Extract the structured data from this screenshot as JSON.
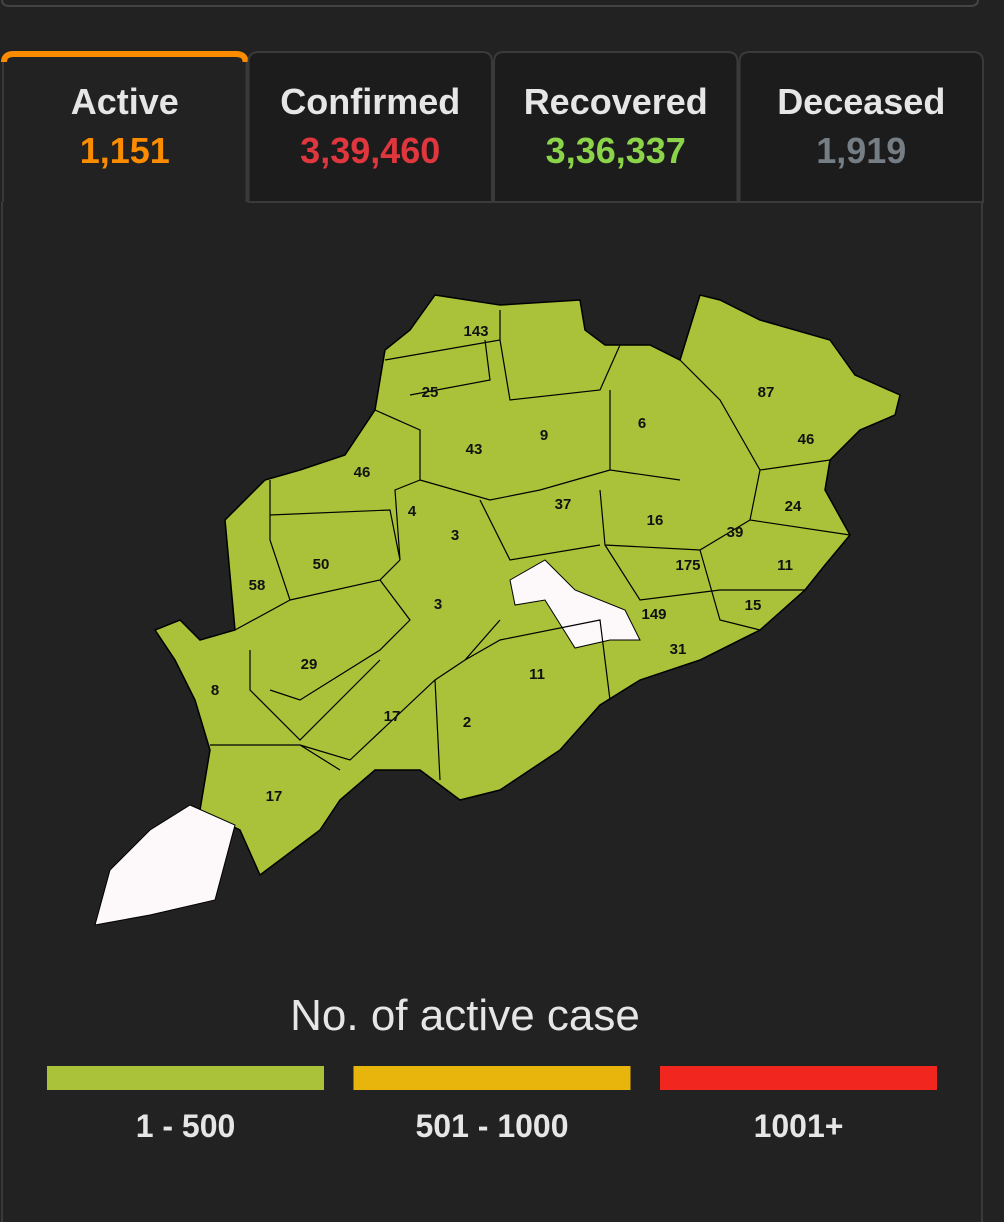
{
  "tabs": [
    {
      "label": "Active",
      "value": "1,151",
      "color": "#fb8c00",
      "active": true
    },
    {
      "label": "Confirmed",
      "value": "3,39,460",
      "color": "#e0373f",
      "active": false
    },
    {
      "label": "Recovered",
      "value": "3,36,337",
      "color": "#8bd44a",
      "active": false
    },
    {
      "label": "Deceased",
      "value": "1,919",
      "color": "#757d85",
      "active": false
    }
  ],
  "map": {
    "fill": "#a9c23a",
    "districts": [
      143,
      25,
      43,
      9,
      6,
      87,
      46,
      46,
      4,
      37,
      24,
      16,
      3,
      39,
      50,
      175,
      11,
      58,
      3,
      149,
      15,
      29,
      31,
      11,
      8,
      17,
      2,
      17
    ]
  },
  "legend": {
    "title": "No. of active case",
    "items": [
      {
        "label": "1 - 500",
        "color": "#a9c23a"
      },
      {
        "label": "501 - 1000",
        "color": "#e8b50d"
      },
      {
        "label": "1001+",
        "color": "#f0261f"
      }
    ]
  }
}
